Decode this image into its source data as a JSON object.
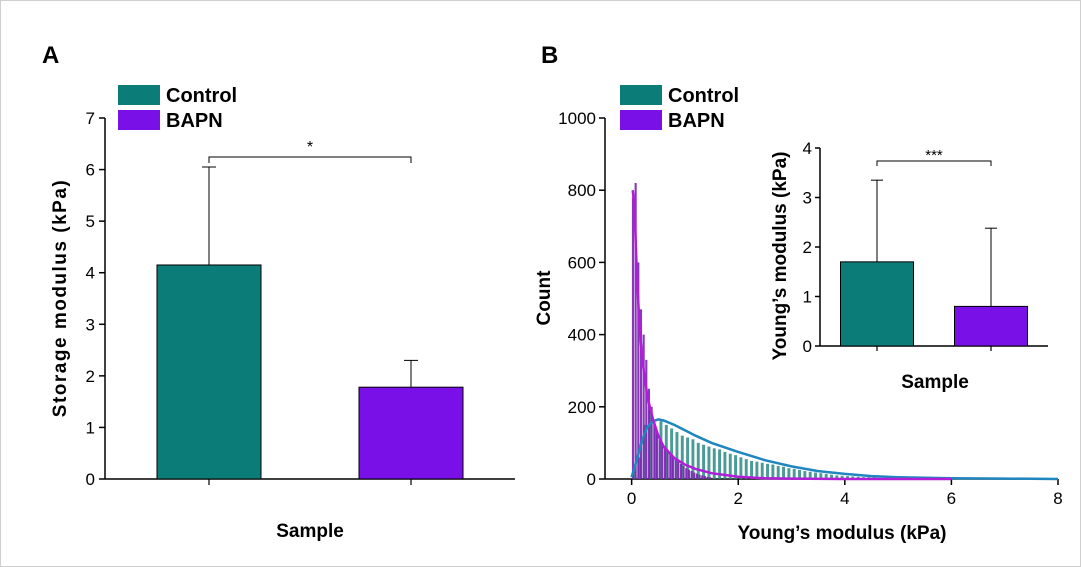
{
  "panels": {
    "a": {
      "label": "A"
    },
    "b": {
      "label": "B"
    }
  },
  "colors": {
    "control": "#0c7c78",
    "bapn": "#7a10e8",
    "bapn_hist": "#7a22b0",
    "control_fit": "#1f86bf",
    "bapn_fit": "#b21ed8",
    "control_hist": "#2a8a82"
  },
  "chart_data": [
    {
      "panel": "A",
      "type": "bar",
      "categories": [
        "Control",
        "BAPN"
      ],
      "values": [
        4.15,
        1.78
      ],
      "errors": [
        1.9,
        0.52
      ],
      "xlabel": "Sample",
      "ylabel": "Storage modulus (kPa)",
      "ylim": [
        0,
        7
      ],
      "yticks": [
        0,
        1,
        2,
        3,
        4,
        5,
        6,
        7
      ],
      "legend": [
        "Control",
        "BAPN"
      ],
      "legend_position": "top-left",
      "significance": "*",
      "grid": false
    },
    {
      "panel": "B",
      "type": "bar",
      "subtype": "histogram",
      "xlabel": "Young’s modulus (kPa)",
      "ylabel": "Count",
      "xlim": [
        -0.5,
        8
      ],
      "ylim": [
        0,
        1000
      ],
      "xticks": [
        0,
        2,
        4,
        6,
        8
      ],
      "yticks": [
        0,
        200,
        400,
        600,
        800,
        1000
      ],
      "legend": [
        "Control",
        "BAPN"
      ],
      "legend_position": "top-left",
      "grid": false,
      "series": [
        {
          "name": "Control",
          "bin_width": 0.1,
          "x": [
            0.05,
            0.15,
            0.25,
            0.35,
            0.45,
            0.55,
            0.65,
            0.75,
            0.85,
            0.95,
            1.05,
            1.15,
            1.25,
            1.35,
            1.45,
            1.55,
            1.65,
            1.75,
            1.85,
            1.95,
            2.05,
            2.15,
            2.25,
            2.35,
            2.45,
            2.55,
            2.65,
            2.75,
            2.85,
            2.95,
            3.05,
            3.15,
            3.25,
            3.35,
            3.45,
            3.55,
            3.65,
            3.75,
            3.85,
            3.95,
            4.05,
            4.15,
            4.25,
            4.35,
            4.45,
            4.55,
            4.65,
            4.75,
            4.85,
            4.95
          ],
          "y": [
            20,
            60,
            150,
            190,
            140,
            160,
            150,
            140,
            130,
            120,
            115,
            110,
            100,
            95,
            90,
            85,
            82,
            75,
            70,
            66,
            60,
            55,
            50,
            48,
            45,
            42,
            40,
            36,
            34,
            30,
            28,
            25,
            22,
            20,
            18,
            16,
            14,
            12,
            10,
            9,
            8,
            7,
            6,
            5,
            5,
            4,
            3,
            3,
            2,
            2
          ]
        },
        {
          "name": "BAPN",
          "bin_width": 0.05,
          "x": [
            0.025,
            0.075,
            0.125,
            0.175,
            0.225,
            0.275,
            0.325,
            0.375,
            0.425,
            0.475,
            0.525,
            0.575,
            0.625,
            0.675,
            0.725,
            0.775,
            0.825,
            0.875,
            0.925,
            0.975,
            1.025,
            1.075,
            1.125,
            1.175,
            1.225,
            1.275,
            1.325,
            1.375,
            1.425,
            1.475
          ],
          "y": [
            780,
            820,
            600,
            470,
            400,
            330,
            250,
            200,
            160,
            130,
            110,
            100,
            90,
            80,
            70,
            62,
            55,
            48,
            42,
            36,
            30,
            26,
            22,
            18,
            15,
            12,
            10,
            8,
            6,
            5
          ]
        }
      ],
      "fits": [
        {
          "name": "Control",
          "x": [
            0.0,
            0.1,
            0.2,
            0.3,
            0.4,
            0.5,
            0.6,
            0.8,
            1.0,
            1.2,
            1.5,
            2.0,
            2.5,
            3.0,
            3.5,
            4.0,
            4.5,
            5.0,
            6.0,
            7.0,
            8.0
          ],
          "y": [
            5,
            55,
            110,
            145,
            160,
            165,
            162,
            150,
            135,
            120,
            100,
            75,
            52,
            35,
            22,
            14,
            8,
            5,
            2,
            1,
            0
          ]
        },
        {
          "name": "BAPN",
          "x": [
            0.02,
            0.05,
            0.1,
            0.15,
            0.2,
            0.3,
            0.4,
            0.5,
            0.6,
            0.8,
            1.0,
            1.2,
            1.5,
            2.0,
            2.5,
            3.0,
            4.0,
            6.0
          ],
          "y": [
            800,
            760,
            560,
            420,
            330,
            225,
            165,
            120,
            90,
            58,
            40,
            28,
            16,
            6,
            2,
            1,
            0,
            0
          ]
        }
      ]
    },
    {
      "panel": "B-inset",
      "type": "bar",
      "categories": [
        "Control",
        "BAPN"
      ],
      "values": [
        1.7,
        0.8
      ],
      "errors": [
        1.65,
        1.58
      ],
      "xlabel": "Sample",
      "ylabel": "Young’s modulus (kPa)",
      "ylim": [
        0,
        4
      ],
      "yticks": [
        0,
        1,
        2,
        3,
        4
      ],
      "significance": "***",
      "grid": false
    }
  ]
}
